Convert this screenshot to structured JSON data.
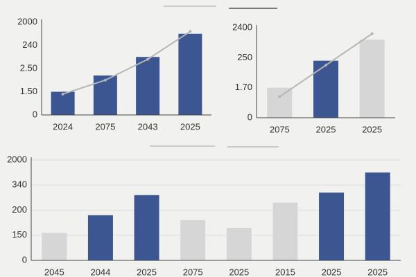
{
  "chart_data": [
    {
      "type": "bar",
      "categories": [
        "2024",
        "2075",
        "2043",
        "2025"
      ],
      "values": [
        1.0,
        1.7,
        2.5,
        3.5
      ],
      "colors": [
        "#3b5690",
        "#3b5690",
        "#3b5690",
        "#3b5690"
      ],
      "trend": [
        0.9,
        1.5,
        2.4,
        3.6
      ],
      "trend_color": "#b5b5b5",
      "y_axis_labels": [
        "0",
        "1.50",
        "2.50",
        "240",
        "2000"
      ],
      "ylim": [
        0,
        4
      ],
      "grid": false
    },
    {
      "type": "bar",
      "categories": [
        "2075",
        "2025",
        "2025"
      ],
      "values": [
        1.0,
        1.9,
        2.6
      ],
      "colors": [
        "#d6d6d6",
        "#3b5690",
        "#d6d6d6"
      ],
      "trend": [
        0.7,
        1.75,
        2.8
      ],
      "trend_color": "#b5b5b5",
      "y_axis_labels": [
        "0",
        "1.70",
        "250",
        "2400"
      ],
      "ylim": [
        0,
        3
      ],
      "grid": false
    },
    {
      "type": "bar",
      "categories": [
        "2045",
        "2044",
        "2025",
        "2075",
        "2025",
        "2015",
        "2025",
        "2025"
      ],
      "values": [
        1.1,
        1.8,
        2.6,
        1.6,
        1.3,
        2.3,
        2.7,
        3.5
      ],
      "colors": [
        "#d6d6d6",
        "#3b5690",
        "#3b5690",
        "#d6d6d6",
        "#d6d6d6",
        "#d6d6d6",
        "#3b5690",
        "#3b5690"
      ],
      "y_axis_labels": [
        "0",
        "150",
        "200",
        "340",
        "2000"
      ],
      "ylim": [
        0,
        4
      ],
      "grid": true
    }
  ]
}
